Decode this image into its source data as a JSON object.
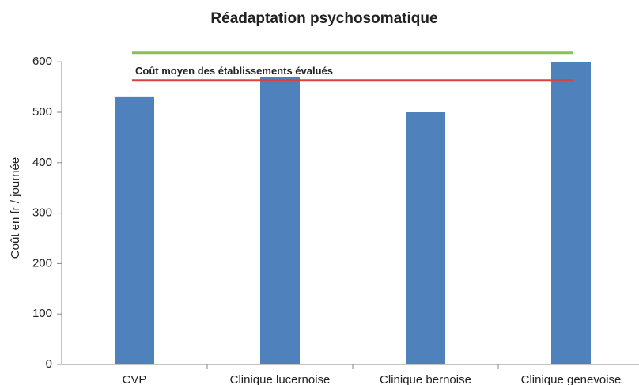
{
  "chart_data": {
    "type": "bar",
    "title": "Réadaptation psychosomatique",
    "y_label": "Coût en fr / journée",
    "categories": [
      "CVP",
      "Clinique lucernoise",
      "Clinique bernoise",
      "Clinique genevoise"
    ],
    "values": [
      530,
      570,
      500,
      600
    ],
    "color": "#4f81bd",
    "ylim": [
      0,
      650
    ],
    "yticks": [
      0,
      100,
      200,
      300,
      400,
      500,
      600
    ],
    "grid": false,
    "reference_lines": [
      {
        "value": 618,
        "color": "#8cc050"
      },
      {
        "value": 563,
        "color": "#d9423d",
        "label": "Coût moyen des établissements évalués"
      }
    ]
  }
}
